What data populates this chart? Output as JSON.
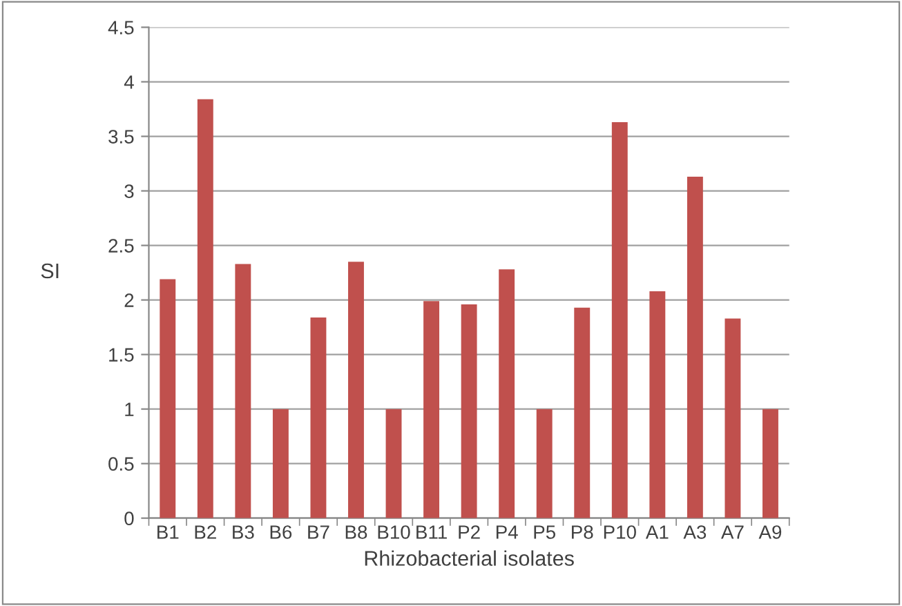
{
  "chart_data": {
    "type": "bar",
    "xlabel": "Rhizobacterial isolates",
    "ylabel": "SI",
    "categories": [
      "B1",
      "B2",
      "B3",
      "B6",
      "B7",
      "B8",
      "B10",
      "B11",
      "P2",
      "P4",
      "P5",
      "P8",
      "P10",
      "A1",
      "A3",
      "A7",
      "A9"
    ],
    "values": [
      2.19,
      3.84,
      2.33,
      1.0,
      1.84,
      2.35,
      1.0,
      1.99,
      1.96,
      2.28,
      1.0,
      1.93,
      3.63,
      2.08,
      3.13,
      1.83,
      1.0
    ],
    "color": "#c0504d",
    "ylim": [
      0,
      4.5
    ],
    "yticks": [
      0,
      0.5,
      1,
      1.5,
      2,
      2.5,
      3,
      3.5,
      4,
      4.5
    ],
    "grid": "y",
    "legend": false
  }
}
